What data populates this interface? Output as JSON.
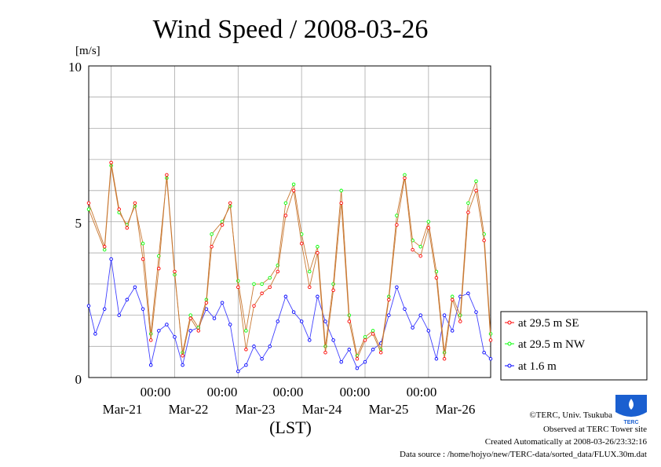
{
  "chart_data": {
    "type": "line",
    "title": "Wind Speed / 2008-03-26",
    "ylabel": "[m/s]",
    "xlabel": "(LST)",
    "ylim": [
      0,
      10
    ],
    "yticks": [
      "0",
      "5",
      "10"
    ],
    "xlim": [
      "2008-03-20T15:30",
      "2008-03-26T23:30"
    ],
    "time_ticks": [
      "00:00",
      "00:00",
      "00:00",
      "00:00",
      "00:00"
    ],
    "date_ticks": [
      "Mar-21",
      "Mar-22",
      "Mar-23",
      "Mar-24",
      "Mar-25",
      "Mar-26"
    ],
    "grid": true,
    "legend_position": "right",
    "series": [
      {
        "name": "at 29.5 m SE",
        "color": "#ff0000",
        "x": [
          "2008-03-20T15:30",
          "2008-03-20T21:30",
          "2008-03-21T00:00",
          "2008-03-21T03:00",
          "2008-03-21T06:00",
          "2008-03-21T09:00",
          "2008-03-21T12:00",
          "2008-03-21T15:00",
          "2008-03-21T18:00",
          "2008-03-21T21:00",
          "2008-03-22T00:00",
          "2008-03-22T03:00",
          "2008-03-22T06:00",
          "2008-03-22T09:00",
          "2008-03-22T12:00",
          "2008-03-22T14:00",
          "2008-03-22T18:00",
          "2008-03-22T21:00",
          "2008-03-23T00:00",
          "2008-03-23T03:00",
          "2008-03-23T06:00",
          "2008-03-23T09:00",
          "2008-03-23T12:00",
          "2008-03-23T15:00",
          "2008-03-23T18:00",
          "2008-03-23T21:00",
          "2008-03-24T00:00",
          "2008-03-24T03:00",
          "2008-03-24T06:00",
          "2008-03-24T09:00",
          "2008-03-24T12:00",
          "2008-03-24T15:00",
          "2008-03-24T18:00",
          "2008-03-24T21:00",
          "2008-03-25T00:00",
          "2008-03-25T03:00",
          "2008-03-25T06:00",
          "2008-03-25T09:00",
          "2008-03-25T12:00",
          "2008-03-25T15:00",
          "2008-03-25T18:00",
          "2008-03-25T21:00",
          "2008-03-26T00:00",
          "2008-03-26T03:00",
          "2008-03-26T06:00",
          "2008-03-26T09:00",
          "2008-03-26T12:00",
          "2008-03-26T15:00",
          "2008-03-26T18:00",
          "2008-03-26T21:00",
          "2008-03-26T23:30"
        ],
        "values": [
          5.6,
          4.2,
          6.9,
          5.4,
          4.8,
          5.6,
          3.8,
          1.2,
          3.5,
          6.5,
          3.4,
          0.7,
          1.9,
          1.5,
          2.4,
          4.2,
          4.9,
          5.6,
          2.9,
          0.9,
          2.3,
          2.7,
          2.9,
          3.4,
          5.2,
          6.0,
          4.3,
          2.9,
          4.0,
          0.8,
          2.8,
          5.6,
          1.8,
          0.6,
          1.2,
          1.4,
          0.8,
          2.5,
          4.9,
          6.4,
          4.1,
          3.9,
          4.8,
          3.2,
          0.6,
          2.5,
          1.8,
          5.3,
          6.0,
          4.4,
          1.2
        ]
      },
      {
        "name": "at 29.5 m NW",
        "color": "#00ff00",
        "x": [
          "2008-03-20T15:30",
          "2008-03-20T21:30",
          "2008-03-21T00:00",
          "2008-03-21T03:00",
          "2008-03-21T06:00",
          "2008-03-21T09:00",
          "2008-03-21T12:00",
          "2008-03-21T15:00",
          "2008-03-21T18:00",
          "2008-03-21T21:00",
          "2008-03-22T00:00",
          "2008-03-22T03:00",
          "2008-03-22T06:00",
          "2008-03-22T09:00",
          "2008-03-22T12:00",
          "2008-03-22T14:00",
          "2008-03-22T18:00",
          "2008-03-22T21:00",
          "2008-03-23T00:00",
          "2008-03-23T03:00",
          "2008-03-23T06:00",
          "2008-03-23T09:00",
          "2008-03-23T12:00",
          "2008-03-23T15:00",
          "2008-03-23T18:00",
          "2008-03-23T21:00",
          "2008-03-24T00:00",
          "2008-03-24T03:00",
          "2008-03-24T06:00",
          "2008-03-24T09:00",
          "2008-03-24T12:00",
          "2008-03-24T15:00",
          "2008-03-24T18:00",
          "2008-03-24T21:00",
          "2008-03-25T00:00",
          "2008-03-25T03:00",
          "2008-03-25T06:00",
          "2008-03-25T09:00",
          "2008-03-25T12:00",
          "2008-03-25T15:00",
          "2008-03-25T18:00",
          "2008-03-25T21:00",
          "2008-03-26T00:00",
          "2008-03-26T03:00",
          "2008-03-26T06:00",
          "2008-03-26T09:00",
          "2008-03-26T12:00",
          "2008-03-26T15:00",
          "2008-03-26T18:00",
          "2008-03-26T21:00",
          "2008-03-26T23:30"
        ],
        "values": [
          5.4,
          4.1,
          6.8,
          5.3,
          4.9,
          5.5,
          4.3,
          1.4,
          3.9,
          6.4,
          3.3,
          0.8,
          2.0,
          1.6,
          2.5,
          4.6,
          5.0,
          5.5,
          3.1,
          1.5,
          3.0,
          3.0,
          3.2,
          3.6,
          5.6,
          6.2,
          4.6,
          3.4,
          4.2,
          1.0,
          3.0,
          6.0,
          2.0,
          0.7,
          1.3,
          1.5,
          0.9,
          2.6,
          5.2,
          6.5,
          4.4,
          4.2,
          5.0,
          3.4,
          0.8,
          2.6,
          2.0,
          5.6,
          6.3,
          4.6,
          1.4
        ]
      },
      {
        "name": "at 1.6 m",
        "color": "#0000ff",
        "x": [
          "2008-03-20T15:30",
          "2008-03-20T18:00",
          "2008-03-20T21:30",
          "2008-03-21T00:00",
          "2008-03-21T03:00",
          "2008-03-21T06:00",
          "2008-03-21T09:00",
          "2008-03-21T12:00",
          "2008-03-21T15:00",
          "2008-03-21T18:00",
          "2008-03-21T21:00",
          "2008-03-22T00:00",
          "2008-03-22T03:00",
          "2008-03-22T06:00",
          "2008-03-22T09:00",
          "2008-03-22T12:00",
          "2008-03-22T15:00",
          "2008-03-22T18:00",
          "2008-03-22T21:00",
          "2008-03-23T00:00",
          "2008-03-23T03:00",
          "2008-03-23T06:00",
          "2008-03-23T09:00",
          "2008-03-23T12:00",
          "2008-03-23T15:00",
          "2008-03-23T18:00",
          "2008-03-23T21:00",
          "2008-03-24T00:00",
          "2008-03-24T03:00",
          "2008-03-24T06:00",
          "2008-03-24T09:00",
          "2008-03-24T12:00",
          "2008-03-24T15:00",
          "2008-03-24T18:00",
          "2008-03-24T21:00",
          "2008-03-25T00:00",
          "2008-03-25T03:00",
          "2008-03-25T06:00",
          "2008-03-25T09:00",
          "2008-03-25T12:00",
          "2008-03-25T15:00",
          "2008-03-25T18:00",
          "2008-03-25T21:00",
          "2008-03-26T00:00",
          "2008-03-26T03:00",
          "2008-03-26T06:00",
          "2008-03-26T09:00",
          "2008-03-26T12:00",
          "2008-03-26T15:00",
          "2008-03-26T18:00",
          "2008-03-26T21:00",
          "2008-03-26T23:30"
        ],
        "values": [
          2.3,
          1.4,
          2.2,
          3.8,
          2.0,
          2.5,
          2.9,
          2.2,
          0.4,
          1.5,
          1.7,
          1.3,
          0.4,
          1.5,
          1.6,
          2.2,
          1.9,
          2.4,
          1.7,
          0.2,
          0.4,
          1.0,
          0.6,
          1.0,
          1.8,
          2.6,
          2.1,
          1.8,
          1.2,
          2.6,
          1.8,
          1.2,
          0.5,
          0.9,
          0.3,
          0.5,
          0.9,
          1.1,
          2.0,
          2.9,
          2.2,
          1.6,
          2.0,
          1.5,
          0.6,
          2.0,
          1.5,
          2.6,
          2.7,
          2.1,
          0.8,
          0.6
        ]
      }
    ]
  },
  "credits": {
    "copyright": "©TERC, Univ. Tsukuba",
    "site": "Observed at TERC Tower site",
    "created": "Created Automatically at 2008-03-26/23:32:16",
    "source": "Data source : /home/hojyo/new/TERC-data/sorted_data/FLUX.30m.dat"
  },
  "logo": {
    "text": "TERC",
    "color": "#1a5fd0"
  }
}
